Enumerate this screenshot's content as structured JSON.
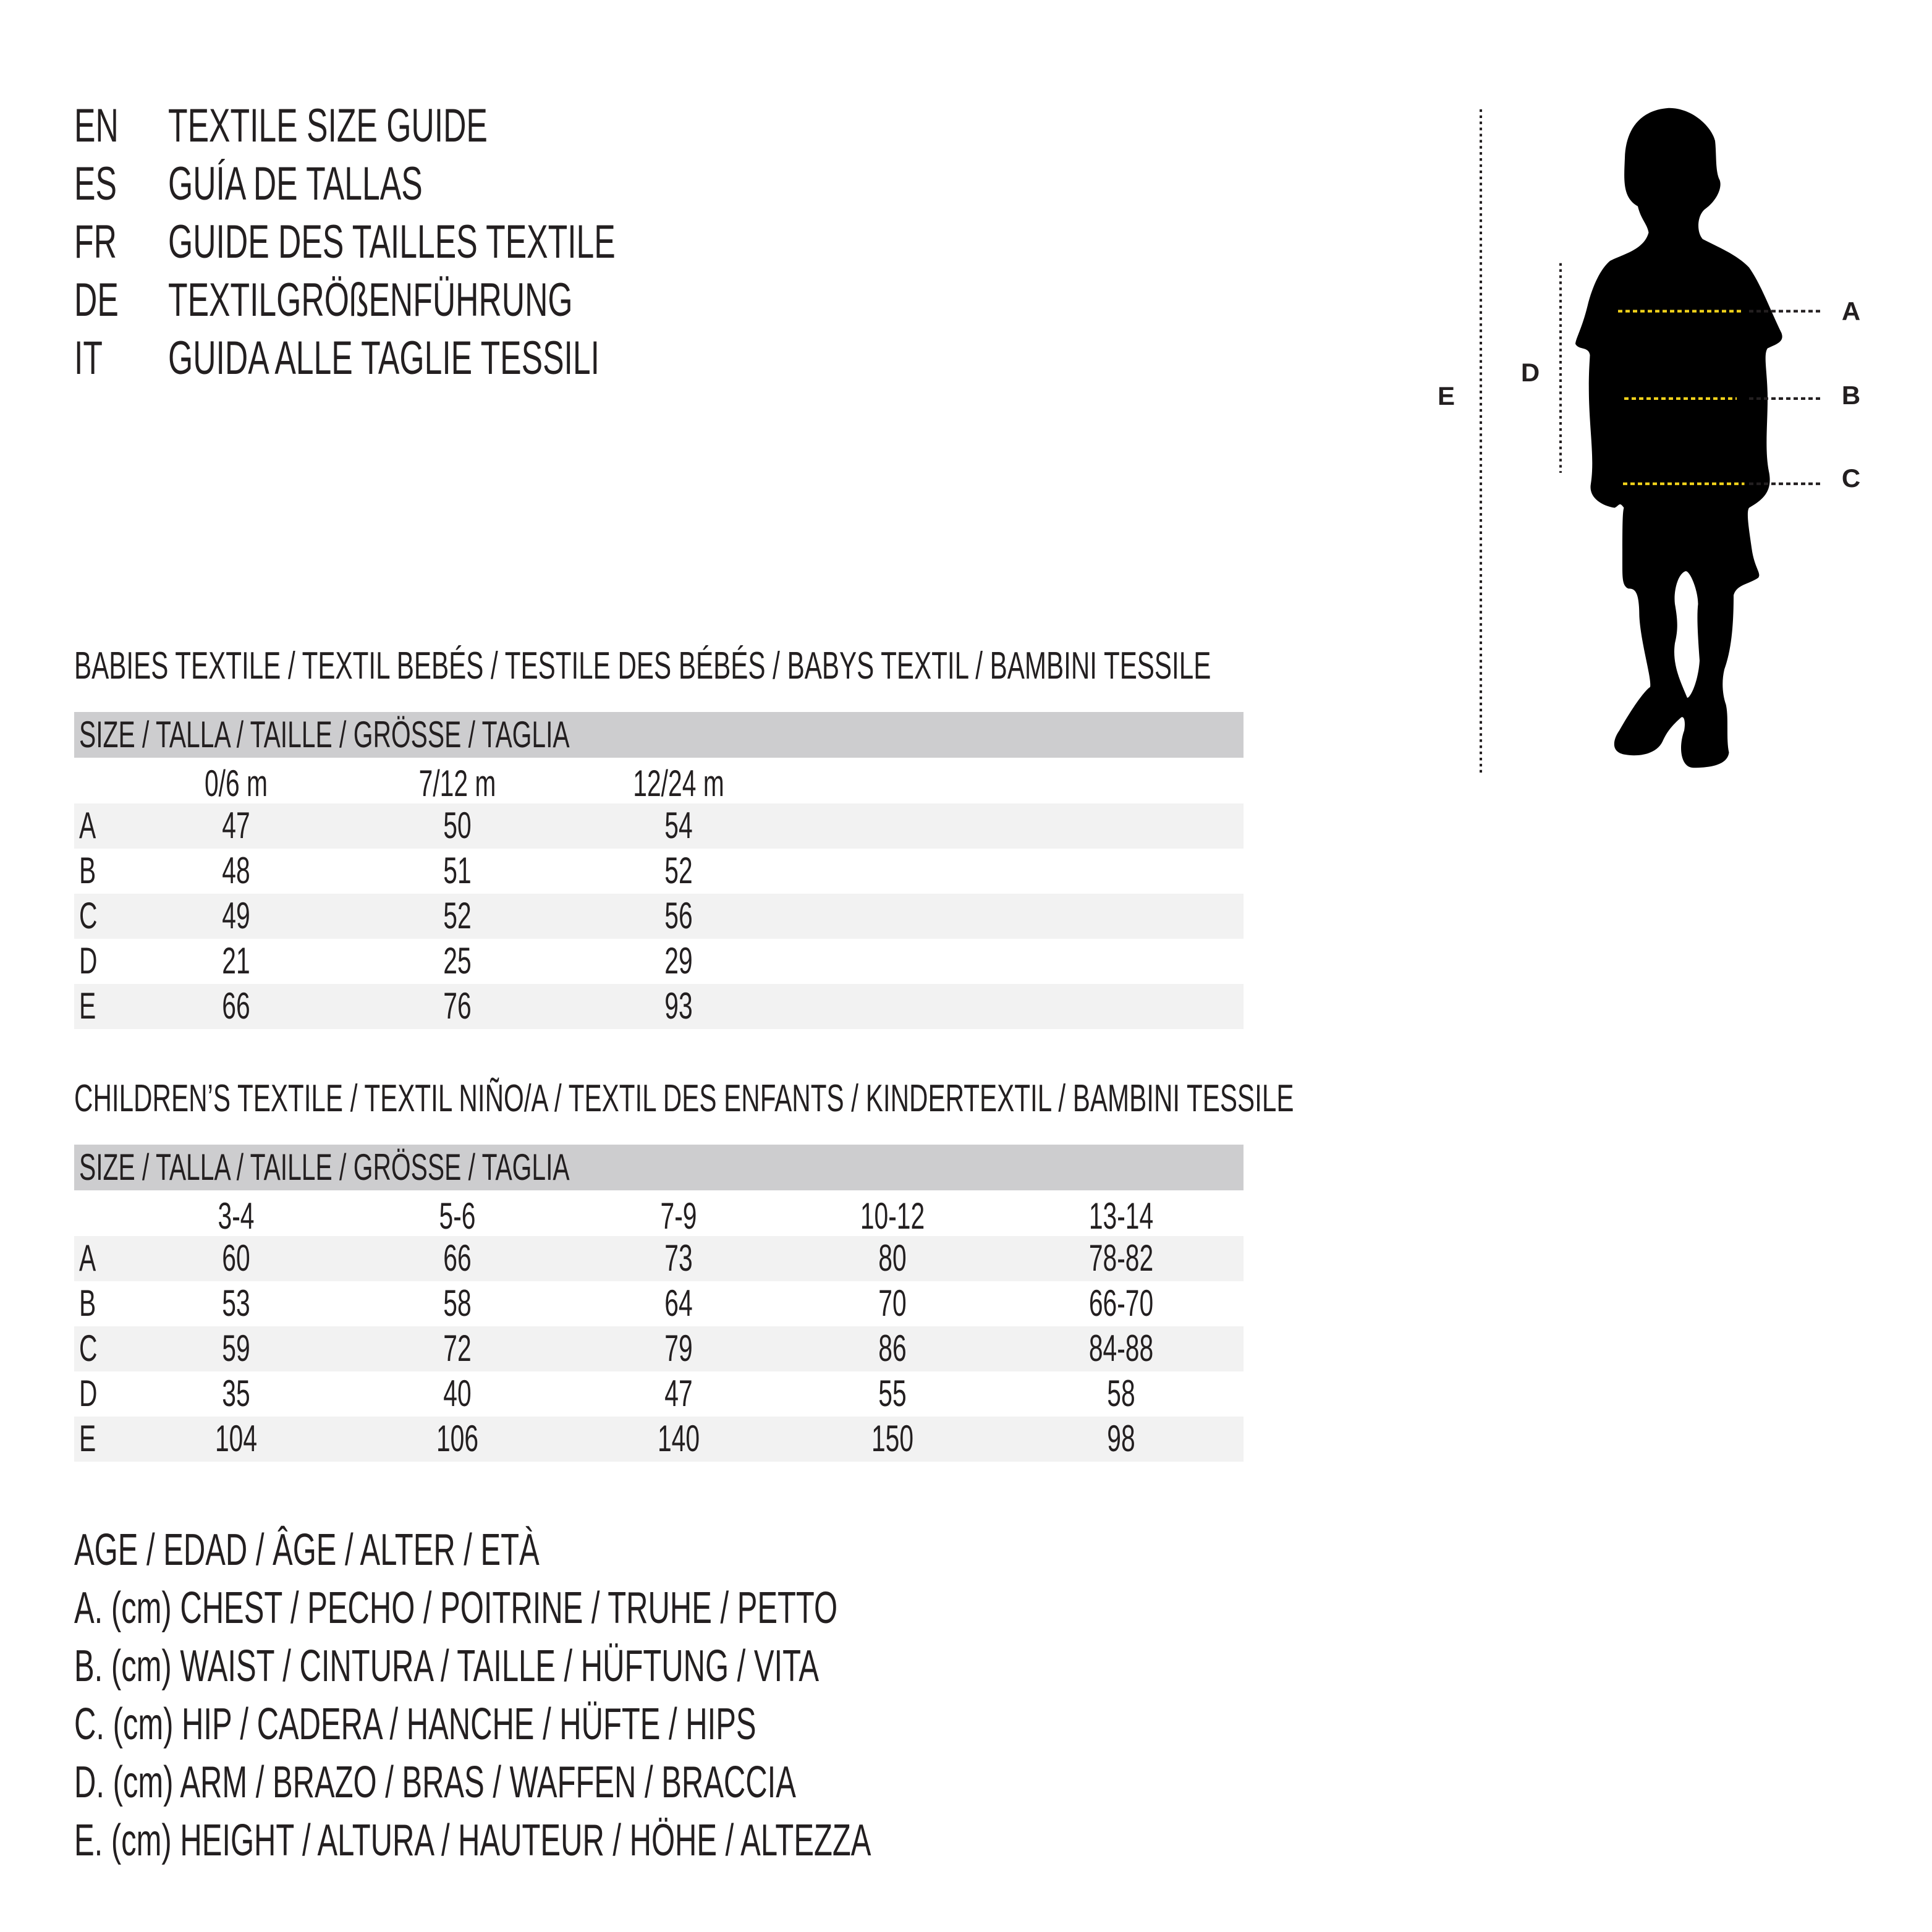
{
  "header": {
    "lines": [
      {
        "lang": "EN",
        "title": "TEXTILE SIZE GUIDE"
      },
      {
        "lang": "ES",
        "title": "GUÍA DE TALLAS"
      },
      {
        "lang": "FR",
        "title": "GUIDE DES TAILLES TEXTILE"
      },
      {
        "lang": "DE",
        "title": "TEXTILGRÖßENFÜHRUNG"
      },
      {
        "lang": "IT",
        "title": "GUIDA ALLE TAGLIE TESSILI"
      }
    ]
  },
  "diagram": {
    "labels": {
      "a": "A",
      "b": "B",
      "c": "C",
      "d": "D",
      "e": "E"
    },
    "colors": {
      "measure_line": "#f2d21b",
      "silhouette": "#000000",
      "guide": "#231f20"
    }
  },
  "babies": {
    "heading": "BABIES TEXTILE / TEXTIL BEBÉS / TESTILE DES BÉBÉS / BABYS TEXTIL / BAMBINI TESSILE",
    "size_header": "SIZE / TALLA / TAILLE / GRÖSSE / TAGLIA",
    "columns": [
      "0/6 m",
      "7/12 m",
      "12/24 m"
    ],
    "rows": [
      {
        "label": "A",
        "values": [
          "47",
          "50",
          "54"
        ]
      },
      {
        "label": "B",
        "values": [
          "48",
          "51",
          "52"
        ]
      },
      {
        "label": "C",
        "values": [
          "49",
          "52",
          "56"
        ]
      },
      {
        "label": "D",
        "values": [
          "21",
          "25",
          "29"
        ]
      },
      {
        "label": "E",
        "values": [
          "66",
          "76",
          "93"
        ]
      }
    ]
  },
  "children": {
    "heading": "CHILDREN’S TEXTILE / TEXTIL NIÑO/A / TEXTIL DES ENFANTS / KINDERTEXTIL / BAMBINI TESSILE",
    "size_header": "SIZE / TALLA / TAILLE / GRÖSSE / TAGLIA",
    "columns": [
      "3-4",
      "5-6",
      "7-9",
      "10-12",
      "13-14"
    ],
    "rows": [
      {
        "label": "A",
        "values": [
          "60",
          "66",
          "73",
          "80",
          "78-82"
        ]
      },
      {
        "label": "B",
        "values": [
          "53",
          "58",
          "64",
          "70",
          "66-70"
        ]
      },
      {
        "label": "C",
        "values": [
          "59",
          "72",
          "79",
          "86",
          "84-88"
        ]
      },
      {
        "label": "D",
        "values": [
          "35",
          "40",
          "47",
          "55",
          "58"
        ]
      },
      {
        "label": "E",
        "values": [
          "104",
          "106",
          "140",
          "150",
          "98"
        ]
      }
    ]
  },
  "legend": [
    "AGE / EDAD / ÂGE / ALTER / ETÀ",
    "A. (cm) CHEST / PECHO / POITRINE / TRUHE / PETTO",
    "B. (cm) WAIST / CINTURA / TAILLE / HÜFTUNG / VITA",
    "C. (cm) HIP / CADERA / HANCHE / HÜFTE / HIPS",
    "D. (cm) ARM / BRAZO / BRAS / WAFFEN / BRACCIA",
    "E. (cm) HEIGHT / ALTURA / HAUTEUR / HÖHE / ALTEZZA"
  ]
}
